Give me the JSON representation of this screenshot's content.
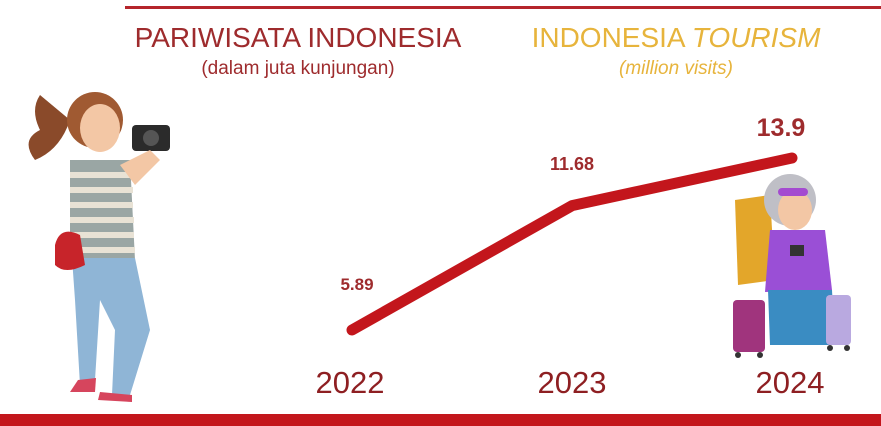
{
  "chart_data": {
    "type": "line",
    "title": "PARIWISATA INDONESIA",
    "subtitle": "(dalam juta kunjungan)",
    "title_en_parts": [
      "INDONESIA",
      "TOURISM"
    ],
    "subtitle_en": "(million visits)",
    "categories": [
      "2022",
      "2023",
      "2024"
    ],
    "values": [
      5.89,
      11.68,
      13.9
    ],
    "color": "#c3161c"
  }
}
